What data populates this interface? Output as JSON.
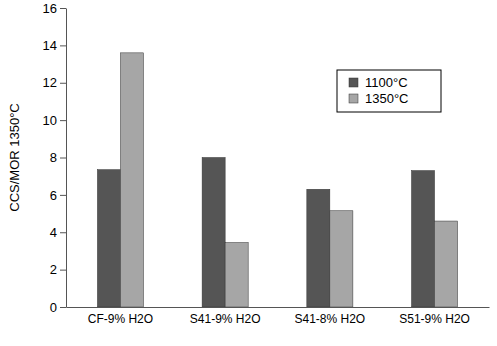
{
  "chart_data": {
    "type": "bar",
    "y_label": "CCS/MOR 1350°C",
    "categories": [
      "CF-9% H2O",
      "S41-9% H2O",
      "S41-8% H2O",
      "S51-9% H2O"
    ],
    "series": [
      {
        "name": "1100°C",
        "color": "#555555",
        "values": [
          7.35,
          8.0,
          6.3,
          7.3
        ]
      },
      {
        "name": "1350°C",
        "color": "#a6a6a6",
        "values": [
          13.6,
          3.45,
          5.15,
          4.6
        ]
      }
    ],
    "ylim": [
      0,
      16
    ],
    "yticks": [
      0,
      2,
      4,
      6,
      8,
      10,
      12,
      14,
      16
    ],
    "grid": false,
    "legend": "upper right"
  }
}
